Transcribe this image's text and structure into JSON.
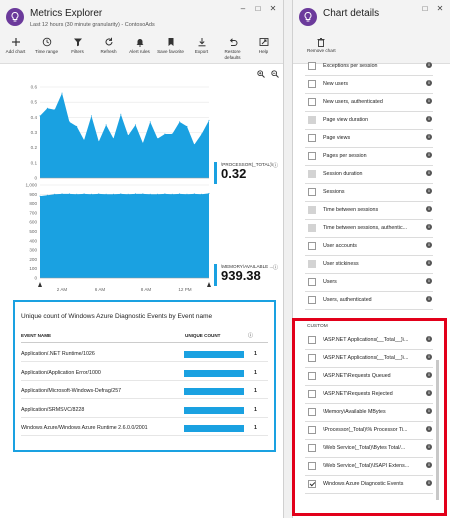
{
  "metrics_explorer": {
    "title": "Metrics Explorer",
    "subtitle": "Last 12 hours (30 minute granularity) - ContosoAds",
    "toolbar": [
      {
        "label": "Add chart",
        "icon": "plus-icon"
      },
      {
        "label": "Time range",
        "icon": "clock-icon"
      },
      {
        "label": "Filters",
        "icon": "filter-icon"
      },
      {
        "label": "Refresh",
        "icon": "refresh-icon"
      },
      {
        "label": "Alert rules",
        "icon": "bell-icon"
      },
      {
        "label": "Save favorite",
        "icon": "bookmark-icon"
      },
      {
        "label": "Export",
        "icon": "download-icon"
      },
      {
        "label": "Restore defaults",
        "icon": "undo-icon"
      },
      {
        "label": "Help",
        "icon": "help-icon"
      }
    ],
    "legend_1": {
      "name": "\\PROCESSOR(_TOTAL)\\...",
      "value": "0.32"
    },
    "legend_2": {
      "name": "\\MEMORY\\AVAILABLE ...",
      "value": "939.38"
    },
    "table": {
      "title": "Unique count of Windows Azure Diagnostic Events by Event name",
      "col_name": "EVENT NAME",
      "col_count": "UNIQUE COUNT",
      "rows": [
        {
          "name": "Application/.NET Runtime/1026",
          "count": "1"
        },
        {
          "name": "Application/Application Error/1000",
          "count": "1"
        },
        {
          "name": "Application/Microsoft-Windows-Defrag/257",
          "count": "1"
        },
        {
          "name": "Application/SRMSVC/8228",
          "count": "1"
        },
        {
          "name": "Windows Azure/Windows Azure Runtime 2.6.0.0/2001",
          "count": "1"
        }
      ]
    }
  },
  "chart_data": [
    {
      "type": "area",
      "ylim": [
        0,
        0.6
      ],
      "yticks": [
        "0.6",
        "0.5",
        "0.4",
        "0.3",
        "0.2",
        "0.1",
        "0"
      ],
      "series": [
        {
          "values": [
            0.41,
            0.46,
            0.45,
            0.56,
            0.37,
            0.34,
            0.25,
            0.41,
            0.24,
            0.35,
            0.26,
            0.42,
            0.28,
            0.35,
            0.23,
            0.37,
            0.26,
            0.29,
            0.29,
            0.37,
            0.34,
            0.22,
            0.29,
            0.38
          ]
        }
      ]
    },
    {
      "type": "area",
      "ylim": [
        0,
        1000
      ],
      "yticks": [
        "1,000",
        "900",
        "800",
        "700",
        "600",
        "500",
        "400",
        "300",
        "200",
        "100",
        "0"
      ],
      "xticks": [
        "2 AM",
        "6 AM",
        "8 AM",
        "12 PM"
      ],
      "series": [
        {
          "values": [
            880,
            890,
            900,
            905,
            905,
            900,
            905,
            900,
            905,
            900,
            900,
            905,
            900,
            905,
            905,
            900,
            900,
            905,
            900,
            905,
            900,
            905,
            900,
            910
          ]
        }
      ]
    }
  ],
  "chart_details": {
    "title": "Chart details",
    "remove_label": "Remove chart",
    "metrics": [
      {
        "label": "Exceptions per session",
        "state": "empty"
      },
      {
        "label": "New users",
        "state": "empty"
      },
      {
        "label": "New users, authenticated",
        "state": "empty"
      },
      {
        "label": "Page view duration",
        "state": "filled"
      },
      {
        "label": "Page views",
        "state": "empty"
      },
      {
        "label": "Pages per session",
        "state": "empty"
      },
      {
        "label": "Session duration",
        "state": "filled"
      },
      {
        "label": "Sessions",
        "state": "empty"
      },
      {
        "label": "Time between sessions",
        "state": "filled"
      },
      {
        "label": "Time between sessions, authentic...",
        "state": "filled"
      },
      {
        "label": "User accounts",
        "state": "empty"
      },
      {
        "label": "User stickiness",
        "state": "filled"
      },
      {
        "label": "Users",
        "state": "empty"
      },
      {
        "label": "Users, authenticated",
        "state": "empty"
      }
    ],
    "custom_label": "CUSTOM",
    "custom_metrics": [
      {
        "label": "\\ASP.NET Applications(__Total__)\\...",
        "state": "empty"
      },
      {
        "label": "\\ASP.NET Applications(__Total__)\\...",
        "state": "empty"
      },
      {
        "label": "\\ASP.NET\\Requests Queued",
        "state": "empty"
      },
      {
        "label": "\\ASP.NET\\Requests Rejected",
        "state": "empty"
      },
      {
        "label": "\\Memory\\Available MBytes",
        "state": "empty"
      },
      {
        "label": "\\Processor(_Total)\\% Processor Ti...",
        "state": "empty"
      },
      {
        "label": "\\Web Service(_Total)\\Bytes Total/...",
        "state": "empty"
      },
      {
        "label": "\\Web Service(_Total)\\ISAPI Extens...",
        "state": "empty"
      },
      {
        "label": "Windows Azure Diagnostic Events",
        "state": "checked"
      }
    ]
  },
  "colors": {
    "accent": "#1aa1e1",
    "highlight": "#e2001a",
    "brand": "#6b3a9b"
  }
}
